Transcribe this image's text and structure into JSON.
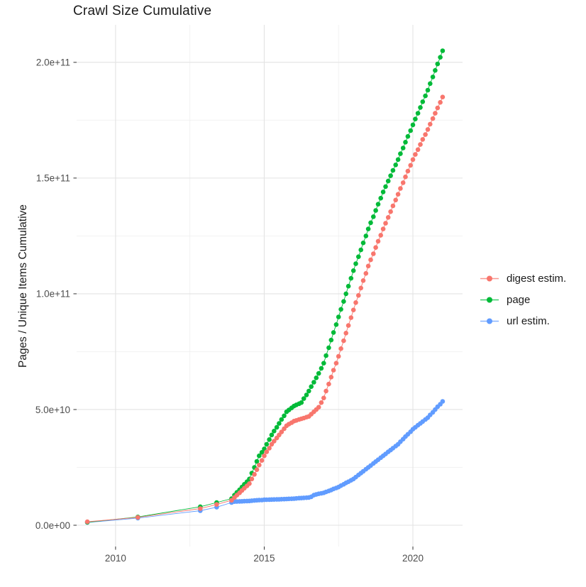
{
  "title": "Crawl Size Cumulative",
  "chart_data": {
    "type": "line",
    "title": "Crawl Size Cumulative",
    "xlabel": "",
    "ylabel": "Pages / Unique Items Cumulative",
    "legend_position": "right",
    "grid": true,
    "background": "#ffffff",
    "grid_major_color": "#e3e3e3",
    "grid_minor_color": "#f0f0f0",
    "tick_color": "#333333",
    "tick_label_color": "#4d4d4d",
    "xlim": [
      2008.69,
      2021.67
    ],
    "ylim": [
      -9200000000.0,
      216200000000.0
    ],
    "x_ticks": [
      {
        "value": 2010,
        "label": "2010"
      },
      {
        "value": 2015,
        "label": "2015"
      },
      {
        "value": 2020,
        "label": "2020"
      }
    ],
    "y_ticks": [
      {
        "value": 0,
        "label": "0.0e+00"
      },
      {
        "value": 50000000000.0,
        "label": "5.0e+10"
      },
      {
        "value": 100000000000.0,
        "label": "1.0e+11"
      },
      {
        "value": 150000000000.0,
        "label": "1.5e+11"
      },
      {
        "value": 200000000000.0,
        "label": "2.0e+11"
      }
    ],
    "x_minor": [
      2012.5,
      2017.5
    ],
    "y_minor": [
      25000000000.0,
      75000000000.0,
      125000000000.0,
      175000000000.0
    ],
    "values_scale": 1000000000.0,
    "x": [
      2009.05,
      2010.75,
      2012.85,
      2013.4,
      2013.9,
      2014.0,
      2014.08,
      2014.17,
      2014.25,
      2014.33,
      2014.42,
      2014.5,
      2014.58,
      2014.67,
      2014.75,
      2014.83,
      2014.92,
      2015.0,
      2015.08,
      2015.17,
      2015.25,
      2015.33,
      2015.42,
      2015.5,
      2015.58,
      2015.67,
      2015.75,
      2015.83,
      2015.92,
      2016.0,
      2016.08,
      2016.17,
      2016.25,
      2016.33,
      2016.42,
      2016.5,
      2016.58,
      2016.67,
      2016.75,
      2016.83,
      2016.92,
      2017.0,
      2017.08,
      2017.17,
      2017.25,
      2017.33,
      2017.42,
      2017.5,
      2017.58,
      2017.67,
      2017.75,
      2017.83,
      2017.92,
      2018.0,
      2018.08,
      2018.17,
      2018.25,
      2018.33,
      2018.42,
      2018.5,
      2018.58,
      2018.67,
      2018.75,
      2018.83,
      2018.92,
      2019.0,
      2019.08,
      2019.17,
      2019.25,
      2019.33,
      2019.42,
      2019.5,
      2019.58,
      2019.67,
      2019.75,
      2019.83,
      2019.92,
      2020.0,
      2020.08,
      2020.17,
      2020.25,
      2020.33,
      2020.42,
      2020.5,
      2020.58,
      2020.67,
      2020.75,
      2020.83,
      2020.92,
      2021.0
    ],
    "series": [
      {
        "name": "digest estim.",
        "color": "#F8766D",
        "values": [
          1.5,
          3.4,
          7.2,
          9.0,
          10.8,
          12,
          13,
          14,
          15,
          16,
          17,
          18,
          20,
          22,
          24,
          26,
          28,
          30,
          31.7,
          33.3,
          35,
          36.3,
          37.7,
          39,
          40.3,
          41.7,
          43,
          43.7,
          44.3,
          45,
          45.3,
          45.7,
          46,
          46.3,
          46.7,
          47,
          48,
          49,
          50,
          51,
          53,
          55,
          58,
          61,
          64,
          67,
          70,
          73,
          76.3,
          79.7,
          83,
          86.3,
          89.7,
          93,
          96.2,
          99.3,
          102.5,
          105.7,
          108.8,
          112,
          114.7,
          117.3,
          120,
          122.7,
          125.3,
          128,
          130.5,
          133,
          135.5,
          138,
          140.5,
          143,
          145.5,
          148,
          150.5,
          153,
          155.5,
          158,
          160.2,
          162.3,
          164.5,
          166.7,
          168.8,
          171,
          173.3,
          175.7,
          178,
          180.3,
          182.7,
          185
        ]
      },
      {
        "name": "page",
        "color": "#00BA38",
        "values": [
          1.3,
          3.6,
          8.0,
          9.8,
          11.5,
          13,
          14.2,
          15.3,
          16.5,
          17.7,
          18.8,
          20,
          22.5,
          25,
          27.6,
          30,
          31.5,
          33,
          35,
          37,
          39,
          40.7,
          42.3,
          44,
          45.7,
          47.3,
          49,
          49.8,
          50.7,
          51.5,
          52,
          52.5,
          53,
          54.7,
          56.3,
          58,
          59.9,
          61.8,
          63.7,
          65.6,
          67.8,
          70,
          73.3,
          76.7,
          80,
          83.3,
          86.7,
          90,
          93.3,
          96.7,
          100,
          103.3,
          106.7,
          110,
          113,
          116,
          119,
          122,
          125,
          128,
          130.7,
          133.3,
          136,
          138.7,
          141.3,
          144,
          146.3,
          148.7,
          151,
          153.3,
          155.7,
          158,
          160.5,
          163,
          165.5,
          168,
          170.5,
          173,
          175.5,
          178,
          180.5,
          183,
          185.5,
          188,
          190.8,
          193.7,
          196.5,
          199.3,
          202.2,
          205
        ]
      },
      {
        "name": "url estim.",
        "color": "#619CFF",
        "values": [
          1.2,
          3.1,
          6.3,
          7.8,
          9.8,
          10.2,
          10.25,
          10.3,
          10.35,
          10.4,
          10.45,
          10.5,
          10.6,
          10.7,
          10.8,
          10.85,
          10.9,
          11,
          11.03,
          11.07,
          11.1,
          11.13,
          11.17,
          11.2,
          11.25,
          11.3,
          11.35,
          11.4,
          11.45,
          11.5,
          11.6,
          11.7,
          11.75,
          11.85,
          11.9,
          12,
          12.3,
          13,
          13.3,
          13.6,
          13.8,
          14,
          14.4,
          14.8,
          15.2,
          15.7,
          16.1,
          16.5,
          17.1,
          17.7,
          18.3,
          18.8,
          19.4,
          20,
          20.8,
          21.7,
          22.5,
          23.3,
          24.2,
          25,
          25.8,
          26.7,
          27.5,
          28.3,
          29.2,
          30,
          30.8,
          31.7,
          32.5,
          33.3,
          34.2,
          35,
          36.1,
          37.2,
          38.3,
          39.3,
          40.4,
          41.5,
          42.3,
          43.2,
          44,
          44.8,
          45.7,
          46.5,
          47.7,
          48.8,
          50,
          51.2,
          52.3,
          53.5
        ]
      }
    ]
  }
}
